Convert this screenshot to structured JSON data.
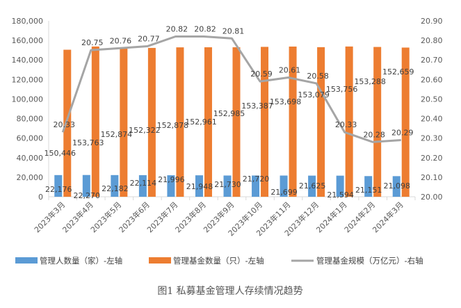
{
  "chart_data": {
    "type": "bar+line",
    "title": "图1 私募基金管理人存续情况趋势",
    "categories": [
      "2023年3月",
      "2023年4月",
      "2023年5月",
      "2023年6月",
      "2023年7月",
      "2023年8月",
      "2023年9月",
      "2023年10月",
      "2023年11月",
      "2023年12月",
      "2024年1月",
      "2024年2月",
      "2024年3月"
    ],
    "series": [
      {
        "name": "管理人数量（家）-左轴",
        "type": "bar",
        "axis": "left",
        "color": "#5B9BD5",
        "values": [
          22176,
          22270,
          22182,
          22114,
          21996,
          21948,
          21730,
          21720,
          21699,
          21625,
          21594,
          21151,
          21098
        ],
        "labels": [
          "22,176",
          "22,270",
          "22,182",
          "22,114",
          "21,996",
          "21,948",
          "21,730",
          "21,720",
          "21,699",
          "21,625",
          "21,594",
          "21,151",
          "21,098"
        ]
      },
      {
        "name": "管理基金数量（只）-左轴",
        "type": "bar",
        "axis": "left",
        "color": "#ED7D31",
        "values": [
          150446,
          153763,
          152874,
          152322,
          152878,
          152961,
          152985,
          153387,
          153698,
          153079,
          153756,
          153288,
          152659
        ],
        "labels": [
          "150,446",
          "153,763",
          "152,874",
          "152,322",
          "152,878",
          "152,961",
          "152,985",
          "153,387",
          "153,698",
          "153,079",
          "153,756",
          "153,288",
          "152,659"
        ]
      },
      {
        "name": "管理基金规模（万亿元）-右轴",
        "type": "line",
        "axis": "right",
        "color": "#A5A5A5",
        "values": [
          20.33,
          20.75,
          20.76,
          20.77,
          20.82,
          20.82,
          20.81,
          20.59,
          20.61,
          20.58,
          20.33,
          20.28,
          20.29
        ],
        "labels": [
          "20.33",
          "20.75",
          "20.76",
          "20.77",
          "20.82",
          "20.82",
          "20.81",
          "20.59",
          "20.61",
          "20.58",
          "20.33",
          "20.28",
          "20.29"
        ]
      }
    ],
    "left_axis": {
      "range": [
        0,
        180000
      ],
      "ticks": [
        "0",
        "20,000",
        "40,000",
        "60,000",
        "80,000",
        "100,000",
        "120,000",
        "140,000",
        "160,000",
        "180,000"
      ]
    },
    "right_axis": {
      "range": [
        20.0,
        20.9
      ],
      "ticks": [
        "20.00",
        "20.10",
        "20.20",
        "20.30",
        "20.40",
        "20.50",
        "20.60",
        "20.70",
        "20.80",
        "20.90"
      ]
    },
    "grid": false,
    "legend_position": "bottom"
  }
}
